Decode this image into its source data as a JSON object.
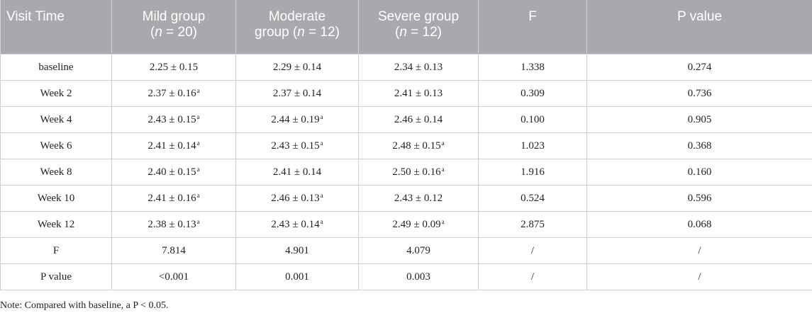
{
  "header": {
    "col1": "Visit Time",
    "col2_line1": "Mild group",
    "col2_line2_pre": "(",
    "col2_n": "n",
    "col2_line2_post": " = 20)",
    "col3_line1": "Moderate",
    "col3_line2_pre": "group (",
    "col3_n": "n",
    "col3_line2_post": " = 12)",
    "col4_line1": "Severe group",
    "col4_line2_pre": "(",
    "col4_n": "n",
    "col4_line2_post": " = 12)",
    "col5": "F",
    "col6": "P value"
  },
  "rows": [
    {
      "label": "baseline",
      "mild": "2.25 ± 0.15",
      "mild_sup": "",
      "moderate": "2.29 ± 0.14",
      "moderate_sup": "",
      "severe": "2.34 ± 0.13",
      "severe_sup": "",
      "f": "1.338",
      "p": "0.274"
    },
    {
      "label": "Week 2",
      "mild": "2.37 ± 0.16",
      "mild_sup": "a",
      "moderate": "2.37 ± 0.14",
      "moderate_sup": "",
      "severe": "2.41 ± 0.13",
      "severe_sup": "",
      "f": "0.309",
      "p": "0.736"
    },
    {
      "label": "Week 4",
      "mild": "2.43 ± 0.15",
      "mild_sup": "a",
      "moderate": "2.44 ± 0.19",
      "moderate_sup": "a",
      "severe": "2.46 ± 0.14",
      "severe_sup": "",
      "f": "0.100",
      "p": "0.905"
    },
    {
      "label": "Week 6",
      "mild": "2.41 ± 0.14",
      "mild_sup": "a",
      "moderate": "2.43 ± 0.15",
      "moderate_sup": "a",
      "severe": "2.48 ± 0.15",
      "severe_sup": "a",
      "f": "1.023",
      "p": "0.368"
    },
    {
      "label": "Week 8",
      "mild": "2.40 ± 0.15",
      "mild_sup": "a",
      "moderate": "2.41 ± 0.14",
      "moderate_sup": "",
      "severe": "2.50 ± 0.16",
      "severe_sup": "a",
      "f": "1.916",
      "p": "0.160"
    },
    {
      "label": "Week 10",
      "mild": "2.41 ± 0.16",
      "mild_sup": "a",
      "moderate": "2.46 ± 0.13",
      "moderate_sup": "a",
      "severe": "2.43 ± 0.12",
      "severe_sup": "",
      "f": "0.524",
      "p": "0.596"
    },
    {
      "label": "Week 12",
      "mild": "2.38 ± 0.13",
      "mild_sup": "a",
      "moderate": "2.43 ± 0.14",
      "moderate_sup": "a",
      "severe": "2.49 ± 0.09",
      "severe_sup": "a",
      "f": "2.875",
      "p": "0.068"
    },
    {
      "label": "F",
      "mild": "7.814",
      "mild_sup": "",
      "moderate": "4.901",
      "moderate_sup": "",
      "severe": "4.079",
      "severe_sup": "",
      "f": "/",
      "p": "/"
    },
    {
      "label": "P value",
      "mild": "<0.001",
      "mild_sup": "",
      "moderate": "0.001",
      "moderate_sup": "",
      "severe": "0.003",
      "severe_sup": "",
      "f": "/",
      "p": "/"
    }
  ],
  "note": "Note: Compared with baseline, a P < 0.05.",
  "colors": {
    "header_bg": "#a7a9ac",
    "header_text": "#ffffff",
    "border": "#cfd0d2",
    "text": "#231f20"
  }
}
